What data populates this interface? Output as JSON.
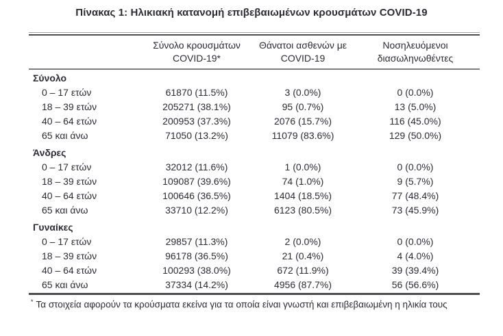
{
  "title": "Πίνακας 1: Ηλικιακή κατανομή επιβεβαιωμένων κρουσμάτων COVID-19",
  "table": {
    "header": {
      "cases": {
        "line1": "Σύνολο κρουσμάτων",
        "line2": "COVID-19*"
      },
      "deaths": {
        "line1": "Θάνατοι ασθενών με",
        "line2": "COVID-19"
      },
      "intubated": {
        "line1": "Νοσηλευόμενοι",
        "line2": "διασωληνωθέντες"
      }
    },
    "sections": [
      {
        "header": "Σύνολο",
        "rows": [
          {
            "age": "0 – 17 ετών",
            "cases": "61870 (11.5%)",
            "deaths": "3 (0.0%)",
            "intubated": "0 (0.0%)"
          },
          {
            "age": "18 – 39 ετών",
            "cases": "205271 (38.1%)",
            "deaths": "95 (0.7%)",
            "intubated": "13 (5.0%)"
          },
          {
            "age": "40 – 64 ετών",
            "cases": "200953 (37.3%)",
            "deaths": "2076 (15.7%)",
            "intubated": "116 (45.0%)"
          },
          {
            "age": "65 και άνω",
            "cases": "71050 (13.2%)",
            "deaths": "11079 (83.6%)",
            "intubated": "129 (50.0%)"
          }
        ]
      },
      {
        "header": "Άνδρες",
        "rows": [
          {
            "age": "0 – 17 ετών",
            "cases": "32012 (11.6%)",
            "deaths": "1 (0.0%)",
            "intubated": "0 (0.0%)"
          },
          {
            "age": "18 – 39 ετών",
            "cases": "109087 (39.6%)",
            "deaths": "74 (1.0%)",
            "intubated": "9 (5.7%)"
          },
          {
            "age": "40 – 64 ετών",
            "cases": "100646 (36.5%)",
            "deaths": "1404 (18.5%)",
            "intubated": "77 (48.4%)"
          },
          {
            "age": "65 και άνω",
            "cases": "33710 (12.2%)",
            "deaths": "6123 (80.5%)",
            "intubated": "73 (45.9%)"
          }
        ]
      },
      {
        "header": "Γυναίκες",
        "rows": [
          {
            "age": "0 – 17 ετών",
            "cases": "29857 (11.3%)",
            "deaths": "2 (0.0%)",
            "intubated": "0 (0.0%)"
          },
          {
            "age": "18 – 39 ετών",
            "cases": "96178 (36.5%)",
            "deaths": "21 (0.4%)",
            "intubated": "4 (4.0%)"
          },
          {
            "age": "40 – 64 ετών",
            "cases": "100293 (38.0%)",
            "deaths": "672 (11.9%)",
            "intubated": "39 (39.4%)"
          },
          {
            "age": "65 και άνω",
            "cases": "37334 (14.2%)",
            "deaths": "4956 (87.7%)",
            "intubated": "56 (56.6%)"
          }
        ]
      }
    ]
  },
  "footnote": {
    "marker": "*",
    "text": "Τα στοιχεία αφορούν τα κρούσματα εκείνα για τα οποία είναι γνωστή και επιβεβαιωμένη η ηλικία τους"
  }
}
